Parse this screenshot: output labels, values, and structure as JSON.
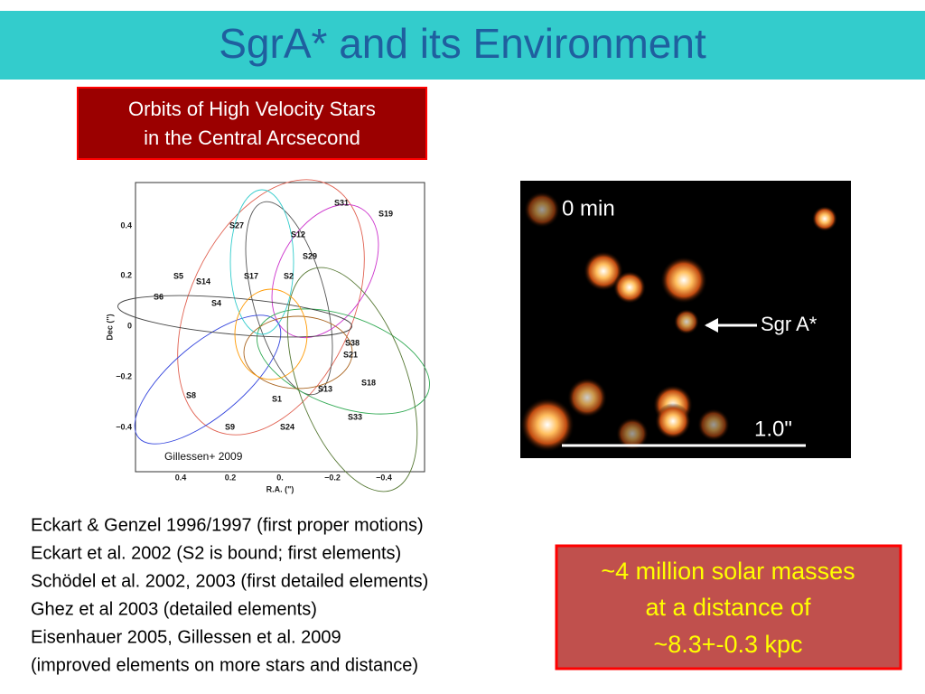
{
  "title": "SgrA* and its Environment",
  "orbit_box": {
    "lines": [
      "Orbits of High Velocity Stars",
      "in the Central Arcsecond"
    ]
  },
  "orbit_plot": {
    "y_label": "Dec (\")",
    "x_label": "R.A. (\")",
    "y_ticks": [
      "0.4",
      "0.2",
      "0",
      "−0.2",
      "−0.4"
    ],
    "x_ticks": [
      "0.4",
      "0.2",
      "0.",
      "−0.2",
      "−0.4"
    ],
    "credit": "Gillessen+ 2009",
    "stars": [
      "S31",
      "S19",
      "S27",
      "S12",
      "S29",
      "S5",
      "S14",
      "S17",
      "S2",
      "S6",
      "S4",
      "S38",
      "S21",
      "S18",
      "S13",
      "S8",
      "S1",
      "S9",
      "S24",
      "S33"
    ]
  },
  "image": {
    "time": "0 min",
    "marker": "Sgr A*",
    "scale": "1.0\""
  },
  "references": [
    "Eckart & Genzel 1996/1997 (first proper motions)",
    "Eckart et al. 2002 (S2 is bound; first elements)",
    "Schödel et al. 2002, 2003 (first detailed elements)",
    "Ghez et al 2003 (detailed elements)",
    "Eisenhauer 2005, Gillessen et al. 2009",
    "(improved elements on more stars and distance)"
  ],
  "mass_box": {
    "lines": [
      "~4 million solar masses",
      "at a distance of",
      "~8.3+-0.3 kpc"
    ]
  }
}
